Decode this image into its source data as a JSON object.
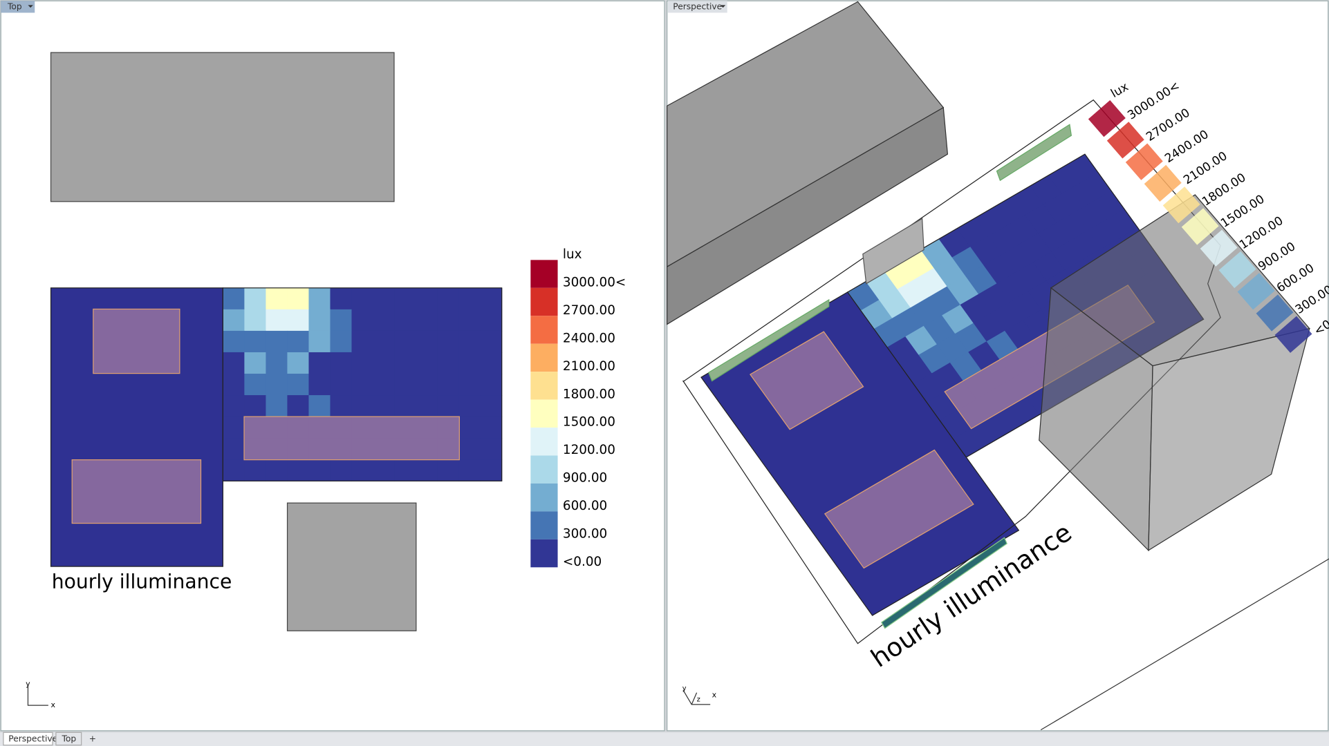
{
  "viewports": [
    {
      "title": "Top"
    },
    {
      "title": "Perspective"
    }
  ],
  "tabs": [
    "Perspective",
    "Top"
  ],
  "caption": "hourly illuminance",
  "axes": {
    "x": "x",
    "y": "y",
    "z": "z"
  },
  "legend": {
    "unit": "lux",
    "labels": [
      "3000.00<",
      "2700.00",
      "2400.00",
      "2100.00",
      "1800.00",
      "1500.00",
      "1200.00",
      "900.00",
      "600.00",
      "300.00",
      "<0.00"
    ],
    "colors": [
      "#a50026",
      "#d73027",
      "#f46d43",
      "#fdae61",
      "#fee090",
      "#ffffbf",
      "#e0f3f8",
      "#abd9e9",
      "#74add1",
      "#4575b4",
      "#313695"
    ]
  },
  "heatmap": {
    "values": [
      [
        450,
        1100,
        1500,
        1500,
        700,
        100,
        50,
        0,
        0,
        0,
        0,
        0,
        0
      ],
      [
        600,
        1000,
        1300,
        1300,
        700,
        350,
        150,
        50,
        0,
        0,
        0,
        0,
        0
      ],
      [
        350,
        500,
        450,
        450,
        800,
        350,
        200,
        100,
        50,
        0,
        0,
        0,
        0
      ],
      [
        200,
        700,
        350,
        650,
        250,
        200,
        200,
        50,
        50,
        0,
        0,
        0,
        0
      ],
      [
        150,
        350,
        350,
        350,
        150,
        100,
        200,
        50,
        0,
        0,
        0,
        0,
        0
      ],
      [
        100,
        100,
        350,
        100,
        350,
        100,
        50,
        0,
        0,
        0,
        0,
        0,
        0
      ],
      [
        50,
        50,
        50,
        50,
        50,
        0,
        0,
        0,
        0,
        0,
        0,
        0,
        0
      ],
      [
        0,
        0,
        0,
        100,
        0,
        0,
        0,
        0,
        0,
        0,
        0,
        0,
        0
      ],
      [
        0,
        0,
        0,
        0,
        0,
        0,
        0,
        0,
        0,
        0,
        0,
        0,
        0
      ]
    ]
  }
}
